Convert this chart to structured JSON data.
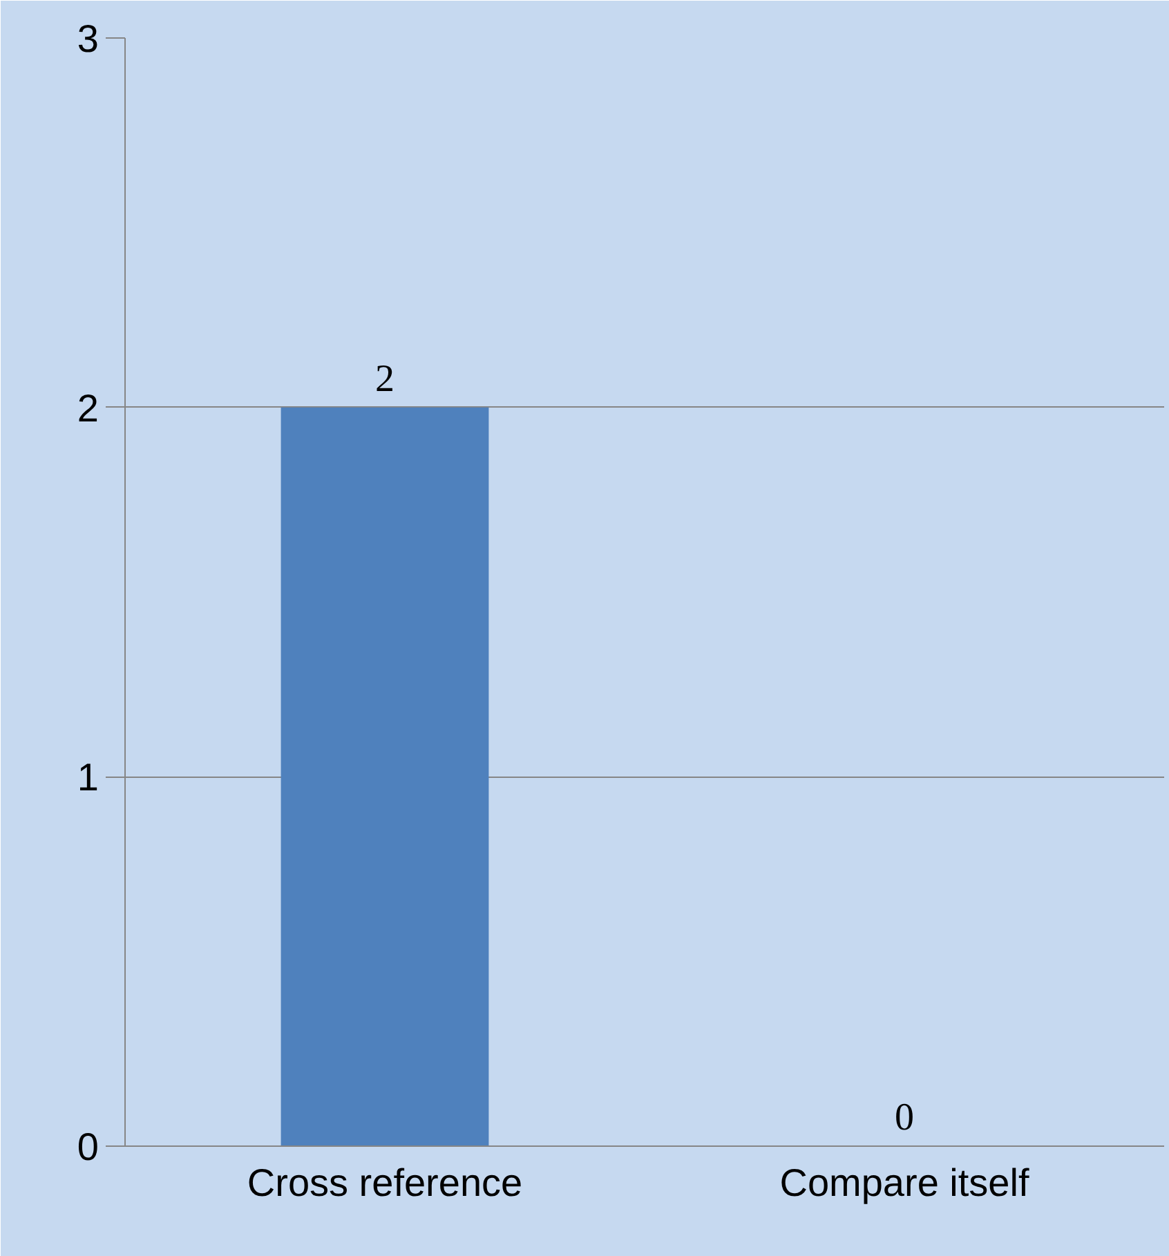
{
  "chart_data": {
    "type": "bar",
    "categories": [
      "Cross reference",
      "Compare itself"
    ],
    "values": [
      2,
      0
    ],
    "color": "#4f81bd",
    "ylim": [
      0,
      3
    ],
    "yticks": [
      0,
      1,
      2,
      3
    ],
    "grid": "y",
    "data_labels": true
  }
}
